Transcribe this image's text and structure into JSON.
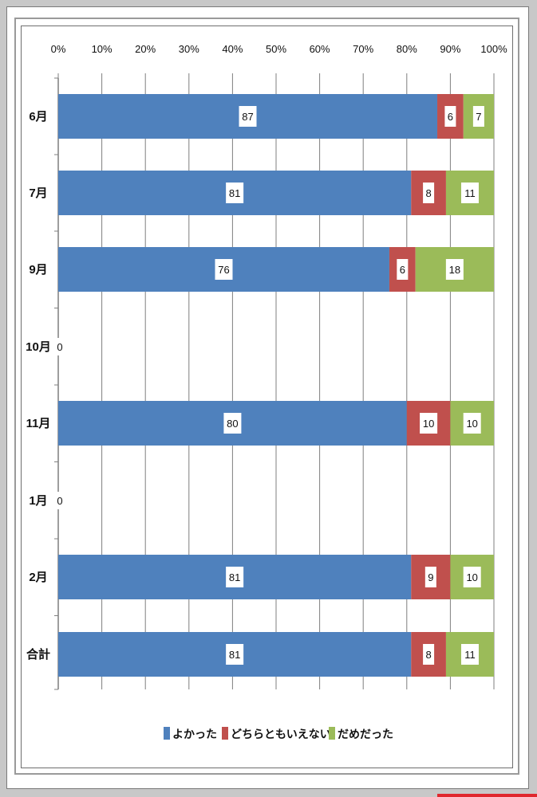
{
  "chart_data": {
    "type": "bar",
    "orientation": "horizontal",
    "stacked": "percent",
    "categories": [
      "6月",
      "7月",
      "9月",
      "10月",
      "11月",
      "1月",
      "2月",
      "合計"
    ],
    "series": [
      {
        "name": "よかった",
        "values": [
          87,
          81,
          76,
          0,
          80,
          0,
          81,
          81
        ],
        "color": "#4f81bd"
      },
      {
        "name": "どちらともいえない",
        "values": [
          6,
          8,
          6,
          0,
          10,
          0,
          9,
          8
        ],
        "color": "#c0504d"
      },
      {
        "name": "だめだった",
        "values": [
          7,
          11,
          18,
          0,
          10,
          0,
          10,
          11
        ],
        "color": "#9bbb59"
      }
    ],
    "xlim": [
      0,
      100
    ],
    "x_ticks": [
      "0%",
      "10%",
      "20%",
      "30%",
      "40%",
      "50%",
      "60%",
      "70%",
      "80%",
      "90%",
      "100%"
    ],
    "axis_position": "top",
    "grid": true,
    "legend_position": "bottom",
    "empty_label": "0"
  }
}
